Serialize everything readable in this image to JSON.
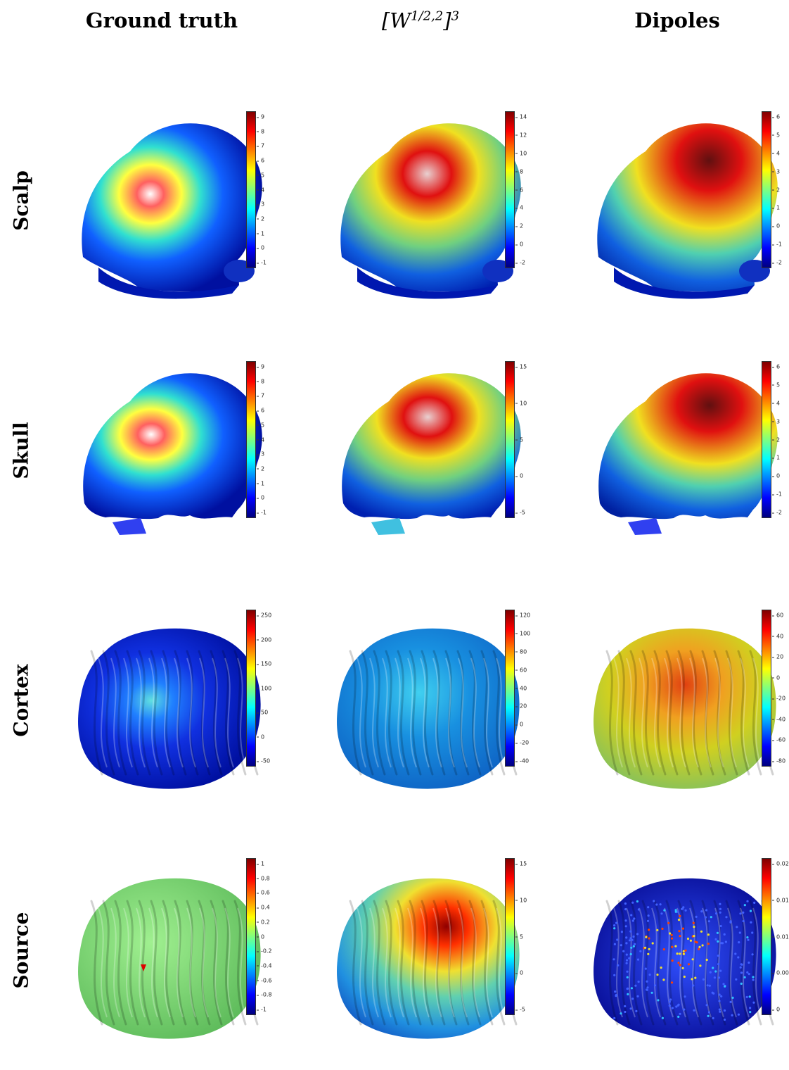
{
  "columns": [
    {
      "title": "Ground truth"
    },
    {
      "title": "[W^{1/2,2}]^3",
      "display": "[W",
      "sup": "1/2,2",
      "close": "]",
      "sup2": "3"
    },
    {
      "title": "Dipoles"
    }
  ],
  "rows": [
    {
      "label": "Scalp",
      "shape": "head",
      "panels": [
        {
          "ticks": [
            "9",
            "8",
            "7",
            "6",
            "5",
            "4",
            "3",
            "2",
            "1",
            "0",
            "-1"
          ],
          "style": "focal"
        },
        {
          "ticks": [
            "14",
            "12",
            "10",
            "8",
            "6",
            "4",
            "2",
            "0",
            "-2"
          ],
          "style": "broad"
        },
        {
          "ticks": [
            "6",
            "5",
            "4",
            "3",
            "2",
            "1",
            "0",
            "-1",
            "-2"
          ],
          "style": "wide"
        }
      ]
    },
    {
      "label": "Skull",
      "shape": "skull",
      "panels": [
        {
          "ticks": [
            "9",
            "8",
            "7",
            "6",
            "5",
            "4",
            "3",
            "2",
            "1",
            "0",
            "-1"
          ],
          "style": "focal"
        },
        {
          "ticks": [
            "15",
            "10",
            "5",
            "0",
            "-5"
          ],
          "style": "broad"
        },
        {
          "ticks": [
            "6",
            "5",
            "4",
            "3",
            "2",
            "1",
            "0",
            "-1",
            "-2"
          ],
          "style": "wide"
        }
      ]
    },
    {
      "label": "Cortex",
      "shape": "brain",
      "panels": [
        {
          "ticks": [
            "250",
            "200",
            "150",
            "100",
            "50",
            "0",
            "-50"
          ],
          "style": "cortex-gt"
        },
        {
          "ticks": [
            "120",
            "100",
            "80",
            "60",
            "40",
            "20",
            "0",
            "-20",
            "-40"
          ],
          "style": "cortex-w"
        },
        {
          "ticks": [
            "60",
            "40",
            "20",
            "0",
            "-20",
            "-40",
            "-60",
            "-80"
          ],
          "style": "cortex-d"
        }
      ]
    },
    {
      "label": "Source",
      "shape": "brain",
      "panels": [
        {
          "ticks": [
            "1",
            "0.8",
            "0.6",
            "0.4",
            "0.2",
            "0",
            "-0.2",
            "-0.4",
            "-0.6",
            "-0.8",
            "-1"
          ],
          "style": "source-gt"
        },
        {
          "ticks": [
            "15",
            "10",
            "5",
            "0",
            "-5"
          ],
          "style": "source-w"
        },
        {
          "ticks": [
            "0.02",
            "0.015",
            "0.01",
            "0.005",
            "0"
          ],
          "style": "source-d"
        }
      ]
    }
  ]
}
